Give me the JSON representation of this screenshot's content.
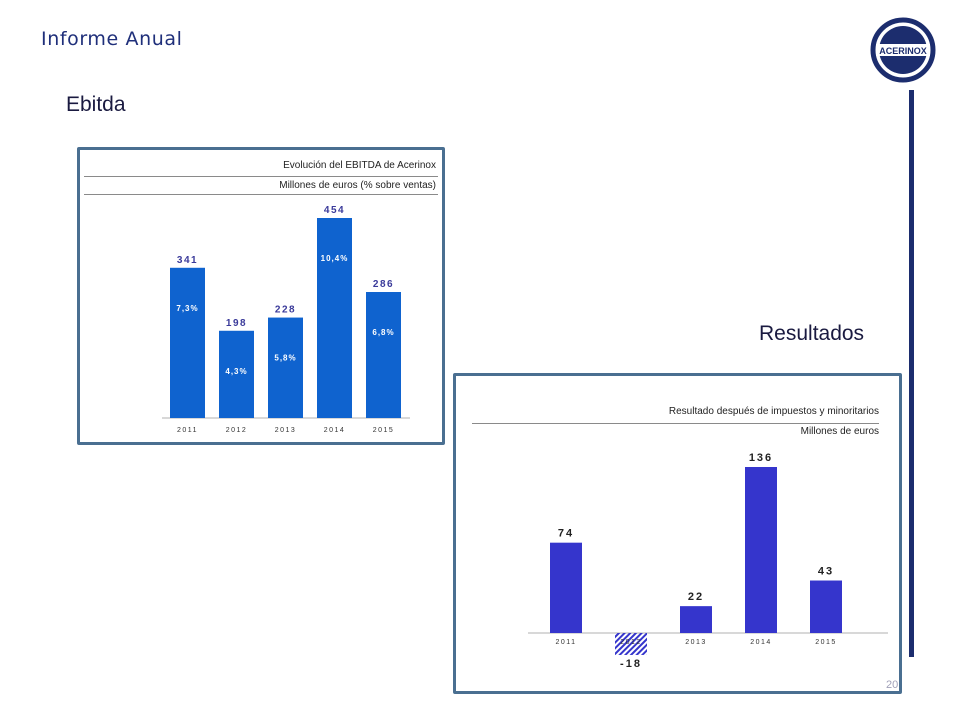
{
  "header": {
    "title": "Informe Anual",
    "logo_text": "ACERINOX"
  },
  "sections": {
    "ebitda_title": "Ebitda",
    "resultados_title": "Resultados"
  },
  "page_number": "20",
  "colors": {
    "brand_navy": "#1c2d6e",
    "ebitda_bar": "#0f63cf",
    "result_bar": "#3535cc",
    "panel_border": "#4a6f91"
  },
  "chart_data": [
    {
      "type": "bar",
      "title": "Evolución del EBITDA de Acerinox",
      "subtitle": "Millones de euros (% sobre ventas)",
      "categories": [
        "2011",
        "2012",
        "2013",
        "2014",
        "2015"
      ],
      "values": [
        341,
        198,
        228,
        454,
        286
      ],
      "value_labels": [
        "341",
        "198",
        "228",
        "454",
        "286"
      ],
      "inner_labels": [
        "7,3%",
        "4,3%",
        "5,8%",
        "10,4%",
        "6,8%"
      ],
      "ylim": [
        0,
        454
      ]
    },
    {
      "type": "bar",
      "title": "Resultado después de impuestos y minoritarios",
      "subtitle": "Millones de euros",
      "categories": [
        "2011",
        "2012",
        "2013",
        "2014",
        "2015"
      ],
      "values": [
        74,
        -18,
        22,
        136,
        43
      ],
      "value_labels": [
        "74",
        "-18",
        "22",
        "136",
        "43"
      ],
      "ylim": [
        -18,
        136
      ]
    }
  ]
}
